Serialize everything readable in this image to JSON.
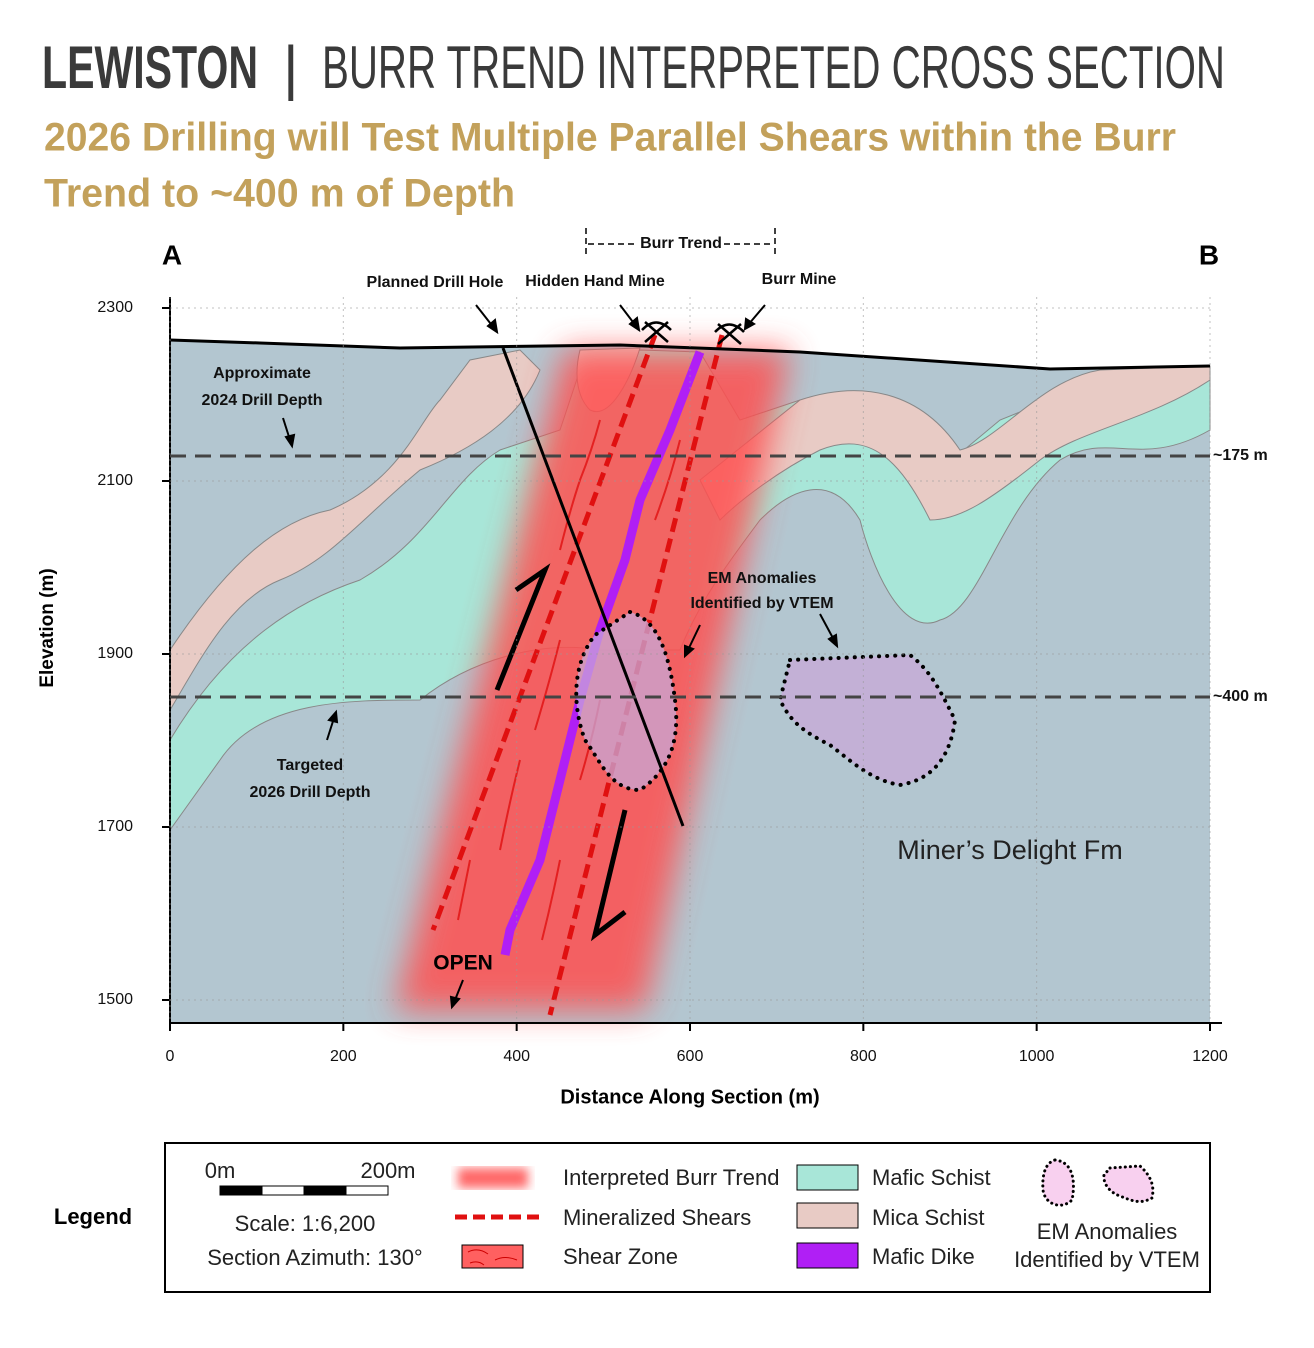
{
  "header": {
    "title_bold": "LEWISTON",
    "separator": "|",
    "title": "BURR TREND INTERPRETED CROSS SECTION",
    "subtitle_lines": [
      "2026 Drilling will Test Multiple Parallel Shears within the Burr",
      "Trend to ~400 m of Depth"
    ]
  },
  "section": {
    "end_a": "A",
    "end_b": "B",
    "burr_trend": "Burr Trend",
    "planned_drill_hole": "Planned Drill Hole",
    "hidden_hand_mine": "Hidden Hand Mine",
    "burr_mine": "Burr Mine",
    "drill_2024": [
      "Approximate",
      "2024 Drill Depth"
    ],
    "drill_2026": [
      "Targeted",
      "2026 Drill Depth"
    ],
    "em_anomalies": [
      "EM Anomalies",
      "Identified by VTEM"
    ],
    "open": "OPEN",
    "formation": "Miner’s Delight Fm",
    "depth_lines": [
      "~175 m",
      "~400 m"
    ]
  },
  "axes": {
    "y_label": "Elevation (m)",
    "x_label": "Distance Along Section (m)",
    "yticks": [
      2300,
      2100,
      1900,
      1700,
      1500
    ],
    "xticks": [
      0,
      200,
      400,
      600,
      800,
      1000,
      1200
    ]
  },
  "legend": {
    "title": "Legend",
    "scale_start": "0m",
    "scale_end": "200m",
    "scale": "Scale: 1:6,200",
    "azimuth": "Section Azimuth: 130°",
    "items": [
      "Interpreted Burr Trend",
      "Mineralized Shears",
      "Shear Zone",
      "Mafic Schist",
      "Mica Schist",
      "Mafic Dike"
    ],
    "em_label": [
      "EM Anomalies",
      "Identified by VTEM"
    ]
  }
}
